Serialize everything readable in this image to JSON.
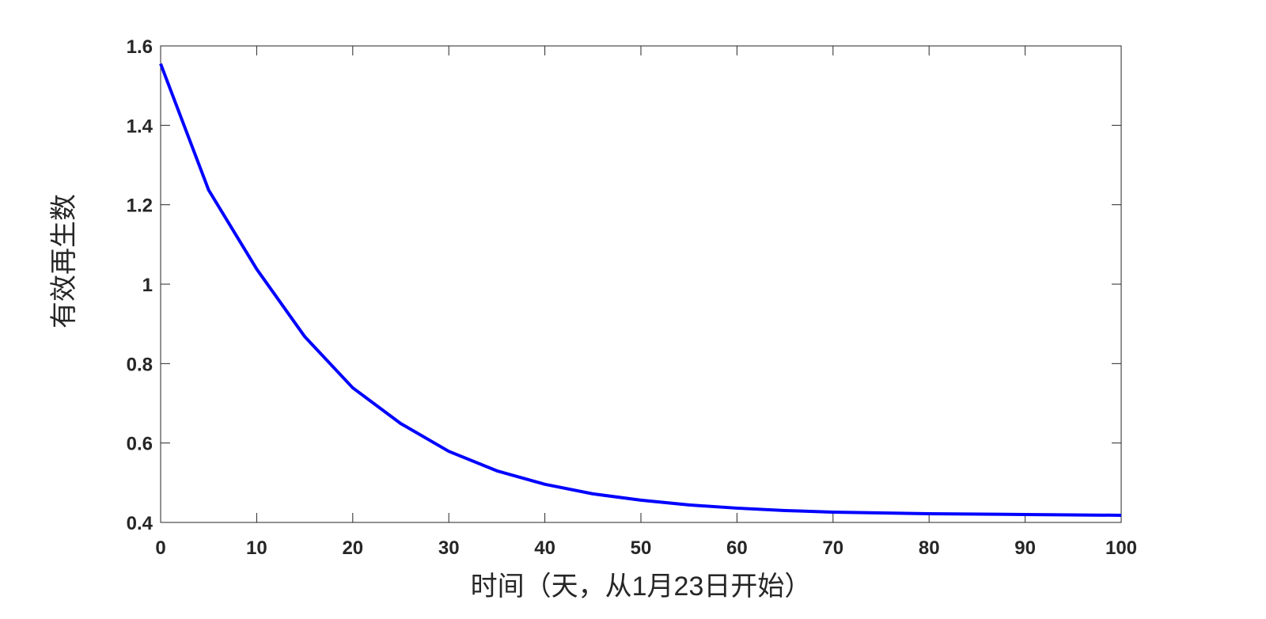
{
  "chart_data": {
    "type": "line",
    "xlabel": "时间（天，从1月23日开始）",
    "ylabel": "有效再生数",
    "x": [
      0,
      5,
      10,
      15,
      20,
      25,
      30,
      35,
      40,
      45,
      50,
      55,
      60,
      65,
      70,
      80,
      90,
      100
    ],
    "series": [
      {
        "color": "#0000ff",
        "values": [
          1.555,
          1.237,
          1.038,
          0.868,
          0.739,
          0.649,
          0.579,
          0.53,
          0.496,
          0.472,
          0.456,
          0.444,
          0.436,
          0.43,
          0.426,
          0.422,
          0.42,
          0.418
        ]
      }
    ],
    "xlim": [
      0,
      100
    ],
    "xticks": [
      0,
      10,
      20,
      30,
      40,
      50,
      60,
      70,
      80,
      90,
      100
    ],
    "ylim": [
      0.4,
      1.6
    ],
    "yticks": [
      0.4,
      0.6,
      0.8,
      1,
      1.2,
      1.4,
      1.6
    ],
    "grid": false
  }
}
